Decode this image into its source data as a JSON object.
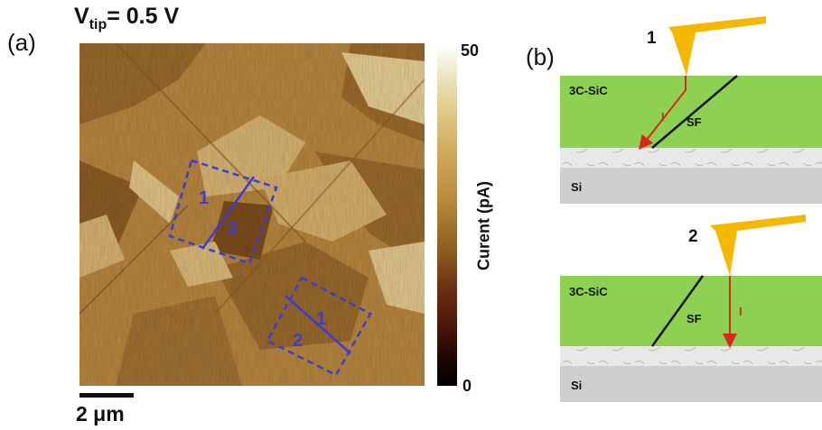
{
  "panel_a": {
    "label": "(a)",
    "voltage_prefix": "V",
    "voltage_sub": "tip",
    "voltage_value": "= 0.5 V",
    "colorbar": {
      "max": "50",
      "min": "0",
      "label": "Curent (pA)"
    },
    "scale_bar": "2 μm",
    "regions": [
      {
        "labels": [
          "1",
          "2"
        ]
      },
      {
        "labels": [
          "1",
          "2"
        ]
      }
    ],
    "colors": {
      "region_outline": "#3b3bd6",
      "image_base": "#b8873f"
    }
  },
  "panel_b": {
    "label": "(b)",
    "diagrams": [
      {
        "tip_label": "1",
        "layer_top": "3C-SiC",
        "layer_bottom": "Si",
        "fault_label": "SF",
        "current_label": "I"
      },
      {
        "tip_label": "2",
        "layer_top": "3C-SiC",
        "layer_bottom": "Si",
        "fault_label": "SF",
        "current_label": "I"
      }
    ],
    "colors": {
      "sic": "#8ed152",
      "si": "#cfcfcf",
      "interface": "#e6e6e6",
      "tip": "#f5b800",
      "current": "#d62a1e",
      "fault": "#111111"
    }
  }
}
